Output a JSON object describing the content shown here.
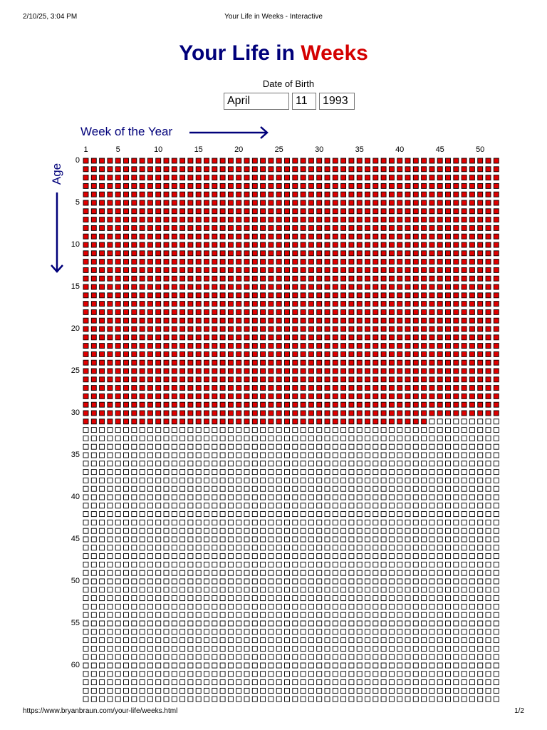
{
  "print_header": {
    "datetime": "2/10/25, 3:04 PM",
    "page_title": "Your Life in Weeks - Interactive"
  },
  "title": {
    "part1": "Your Life in ",
    "part2": "Weeks"
  },
  "dob": {
    "label": "Date of Birth",
    "month": "April",
    "day": "11",
    "year": "1993"
  },
  "week_axis": {
    "label": "Week of the Year",
    "ticks": [
      "1",
      "5",
      "10",
      "15",
      "20",
      "25",
      "30",
      "35",
      "40",
      "45",
      "50"
    ]
  },
  "age_axis": {
    "label": "Age",
    "ticks": [
      "0",
      "5",
      "10",
      "15",
      "20",
      "25",
      "30",
      "35",
      "40",
      "45",
      "50",
      "55",
      "60"
    ]
  },
  "grid": {
    "weeks_per_year": 52,
    "years_shown": 65,
    "lived_full_years": 31,
    "lived_weeks_in_current_year": 43
  },
  "colors": {
    "title_blue": "#00007a",
    "title_red": "#d40000",
    "lived_fill": "#e00000",
    "box_border": "#000000"
  },
  "print_footer": {
    "url": "https://www.bryanbraun.com/your-life/weeks.html",
    "page": "1/2"
  }
}
